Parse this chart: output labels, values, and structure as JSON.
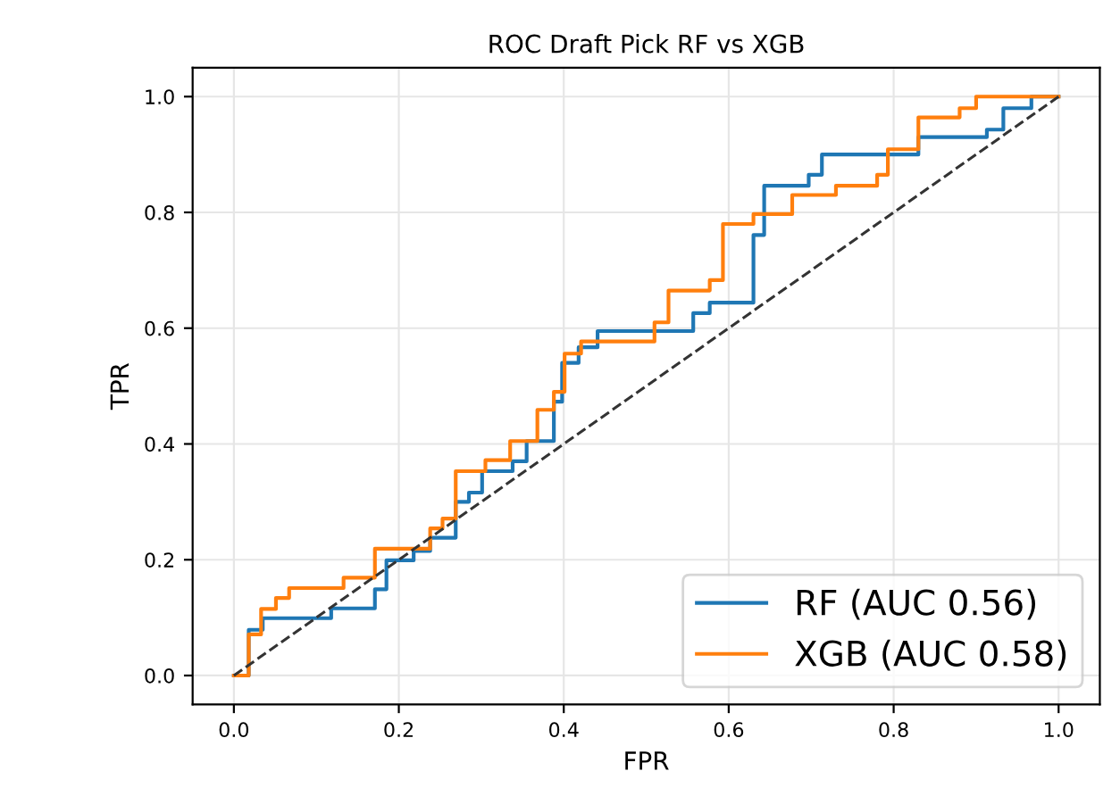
{
  "chart_data": {
    "type": "step",
    "title": "ROC Draft Pick RF vs XGB",
    "xlabel": "FPR",
    "ylabel": "TPR",
    "xlim": [
      -0.05,
      1.05
    ],
    "ylim": [
      -0.05,
      1.05
    ],
    "xticks": [
      {
        "value": 0,
        "label": "0.0"
      },
      0.2,
      0.4,
      0.6,
      0.8,
      {
        "value": 1,
        "label": "1.0"
      }
    ],
    "yticks": [
      {
        "value": 0,
        "label": "0.0"
      },
      0.2,
      0.4,
      0.6,
      0.8,
      {
        "value": 1,
        "label": "1.0"
      }
    ],
    "grid": true,
    "legend": "bottom right",
    "series": [
      {
        "name": "RF (AUC 0.56)",
        "color": "#1f77b4",
        "x": [
          0,
          0.018,
          0.035,
          0.118,
          0.171,
          0.185,
          0.218,
          0.238,
          0.269,
          0.285,
          0.301,
          0.338,
          0.355,
          0.388,
          0.398,
          0.418,
          0.441,
          0.557,
          0.577,
          0.63,
          0.643,
          0.697,
          0.713,
          0.83,
          0.913,
          0.933,
          0.967,
          1.0
        ],
        "values": [
          0,
          0.079,
          0.099,
          0.116,
          0.149,
          0.199,
          0.215,
          0.238,
          0.3,
          0.316,
          0.353,
          0.37,
          0.405,
          0.473,
          0.54,
          0.567,
          0.595,
          0.626,
          0.644,
          0.761,
          0.846,
          0.865,
          0.9,
          0.93,
          0.943,
          0.98,
          1.0,
          1.0
        ]
      },
      {
        "name": "XGB (AUC 0.58)",
        "color": "#ff7f0e",
        "x": [
          0,
          0.018,
          0.033,
          0.051,
          0.067,
          0.133,
          0.171,
          0.238,
          0.253,
          0.269,
          0.305,
          0.335,
          0.368,
          0.388,
          0.401,
          0.421,
          0.51,
          0.527,
          0.577,
          0.593,
          0.63,
          0.677,
          0.73,
          0.78,
          0.793,
          0.83,
          0.88,
          0.9,
          1.0
        ],
        "values": [
          0,
          0.071,
          0.115,
          0.134,
          0.151,
          0.169,
          0.219,
          0.254,
          0.271,
          0.353,
          0.372,
          0.405,
          0.459,
          0.49,
          0.556,
          0.577,
          0.61,
          0.665,
          0.683,
          0.78,
          0.797,
          0.83,
          0.846,
          0.865,
          0.909,
          0.964,
          0.98,
          1.0,
          1.0
        ]
      },
      {
        "type": "line",
        "color": "#333333",
        "line_style": "dashed",
        "x": [
          0,
          1
        ],
        "values": [
          0,
          1
        ]
      }
    ]
  }
}
